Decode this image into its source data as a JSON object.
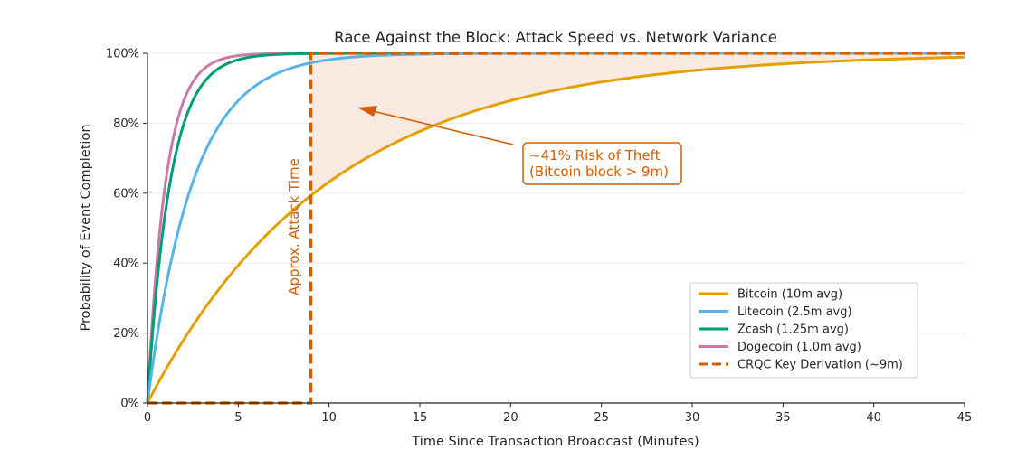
{
  "chart_data": {
    "type": "line",
    "title": "Race Against the Block: Attack Speed vs. Network Variance",
    "xlabel": "Time Since Transaction Broadcast (Minutes)",
    "ylabel": "Probability of Event Completion",
    "xlim": [
      0,
      45
    ],
    "ylim": [
      0,
      1
    ],
    "x_ticks": [
      0,
      5,
      10,
      15,
      20,
      25,
      30,
      35,
      40,
      45
    ],
    "x_tick_labels": [
      "0",
      "5",
      "10",
      "15",
      "20",
      "25",
      "30",
      "35",
      "40",
      "45"
    ],
    "y_ticks": [
      0,
      0.2,
      0.4,
      0.6,
      0.8,
      1.0
    ],
    "y_tick_labels": [
      "0%",
      "20%",
      "40%",
      "60%",
      "80%",
      "100%"
    ],
    "grid": "horizontal",
    "legend_position": "lower-right",
    "series": [
      {
        "name": "Bitcoin (10m avg)",
        "curve": "exponential_cdf",
        "mean_minutes": 10,
        "color": "#e69f00",
        "style": "solid"
      },
      {
        "name": "Litecoin (2.5m avg)",
        "curve": "exponential_cdf",
        "mean_minutes": 2.5,
        "color": "#56b4e9",
        "style": "solid"
      },
      {
        "name": "Zcash (1.25m avg)",
        "curve": "exponential_cdf",
        "mean_minutes": 1.25,
        "color": "#009e73",
        "style": "solid"
      },
      {
        "name": "Dogecoin (1.0m avg)",
        "curve": "exponential_cdf",
        "mean_minutes": 1.0,
        "color": "#cc79a7",
        "style": "solid"
      },
      {
        "name": "CRQC Key Derivation (~9m)",
        "curve": "step",
        "step_minutes": 9,
        "color": "#d55e00",
        "style": "dashed"
      }
    ],
    "shaded_region": {
      "between": "Bitcoin (10m avg) and 100%",
      "from_x": 9,
      "to_x": 45,
      "color": "#f6e3d6"
    },
    "annotations": [
      {
        "text_lines": [
          "~41% Risk of Theft",
          "(Bitcoin block > 9m)"
        ],
        "arrow_target": [
          11.5,
          0.84
        ],
        "color": "#d55e00"
      },
      {
        "text": "Approx. Attack Time",
        "rotation": "vertical",
        "color": "#d55e00"
      }
    ]
  }
}
